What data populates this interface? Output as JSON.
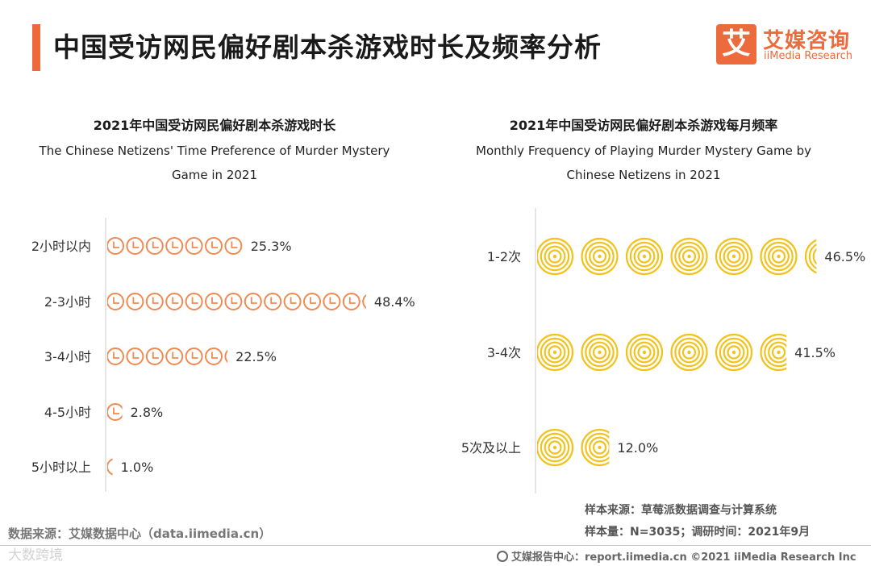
{
  "header": {
    "title": "中国受访网民偏好剧本杀游戏时长及频率分析",
    "logo_mark": "艾",
    "logo_cn": "艾媒咨询",
    "logo_en": "iiMedia Research"
  },
  "colors": {
    "accent": "#f0683a",
    "duration_icon": "#f08a52",
    "frequency_icon": "#f2c21b"
  },
  "chart_data": [
    {
      "type": "bar",
      "title": "2021年中国受访网民偏好剧本杀游戏时长",
      "subtitle": "The Chinese Netizens' Time Preference of Murder Mystery Game in 2021",
      "icon": "clock-icon",
      "categories": [
        "2小时以内",
        "2-3小时",
        "3-4小时",
        "4-5小时",
        "5小时以上"
      ],
      "values": [
        25.3,
        48.4,
        22.5,
        2.8,
        1.0
      ],
      "value_labels": [
        "25.3%",
        "48.4%",
        "22.5%",
        "2.8%",
        "1.0%"
      ],
      "unit": "%"
    },
    {
      "type": "bar",
      "title": "2021年中国受访网民偏好剧本杀游戏每月频率",
      "subtitle": "Monthly Frequency of Playing Murder Mystery Game by Chinese Netizens in 2021",
      "icon": "target-icon",
      "categories": [
        "1-2次",
        "3-4次",
        "5次及以上"
      ],
      "values": [
        46.5,
        41.5,
        12.0
      ],
      "value_labels": [
        "46.5%",
        "41.5%",
        "12.0%"
      ],
      "unit": "%"
    }
  ],
  "notes": {
    "data_source": "数据来源：艾媒数据中心（data.iimedia.cn）",
    "sample_source": "样本来源：草莓派数据调查与计算系统",
    "sample_size": "样本量：N=3035；调研时间：2021年9月"
  },
  "footer": {
    "text": "艾媒报告中心：report.iimedia.cn ©2021 iiMedia Research Inc",
    "watermark": "大数跨境"
  }
}
